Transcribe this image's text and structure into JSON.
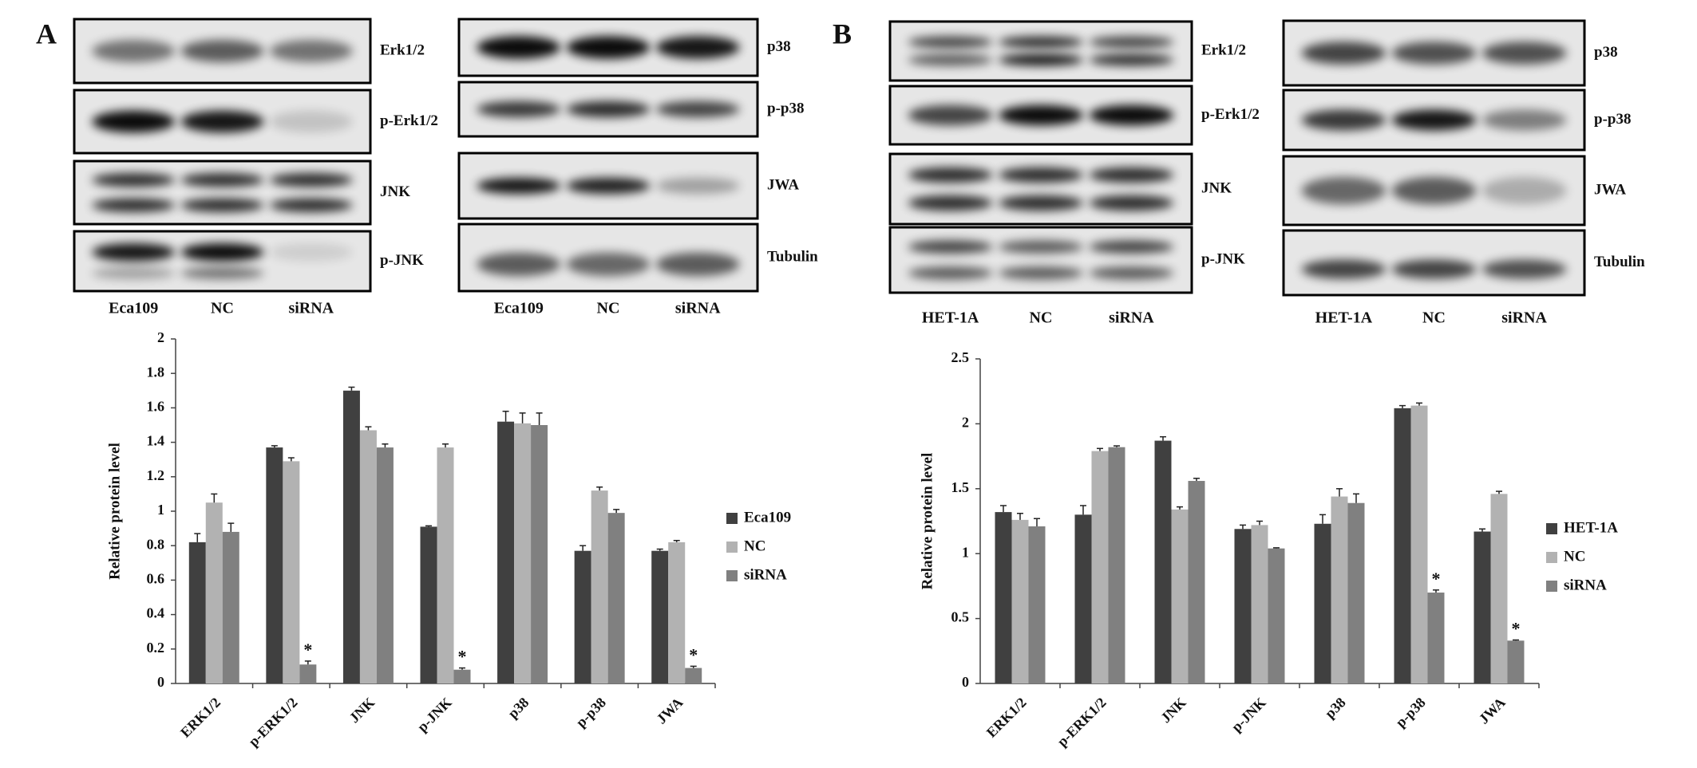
{
  "panel_labels": [
    "A",
    "B"
  ],
  "blots": [
    {
      "rows": [
        "Erk1/2",
        "p-Erk1/2",
        "JNK",
        "p-JNK"
      ],
      "lanes": [
        "Eca109",
        "NC",
        "siRNA"
      ]
    },
    {
      "rows": [
        "p38",
        "p-p38",
        "JWA",
        "Tubulin"
      ],
      "lanes": [
        "Eca109",
        "NC",
        "siRNA"
      ]
    },
    {
      "rows": [
        "Erk1/2",
        "p-Erk1/2",
        "JNK",
        "p-JNK"
      ],
      "lanes": [
        "HET-1A",
        "NC",
        "siRNA"
      ]
    },
    {
      "rows": [
        "p38",
        "p-p38",
        "JWA",
        "Tubulin"
      ],
      "lanes": [
        "HET-1A",
        "NC",
        "siRNA"
      ]
    }
  ],
  "chart_data": [
    {
      "type": "bar",
      "y_label": "Relative protein level",
      "categories": [
        "ERK1/2",
        "p-ERK1/2",
        "JNK",
        "p-JNK",
        "p38",
        "p-p38",
        "JWA"
      ],
      "series": [
        {
          "name": "Eca109",
          "color": "#404040",
          "values": [
            0.82,
            1.37,
            1.7,
            0.91,
            1.52,
            0.77,
            0.77
          ],
          "errors": [
            0.05,
            0.01,
            0.02,
            0.005,
            0.06,
            0.03,
            0.01
          ]
        },
        {
          "name": "NC",
          "color": "#b2b2b2",
          "values": [
            1.05,
            1.29,
            1.47,
            1.37,
            1.51,
            1.12,
            0.82
          ],
          "errors": [
            0.05,
            0.02,
            0.02,
            0.02,
            0.06,
            0.02,
            0.01
          ]
        },
        {
          "name": "siRNA",
          "color": "#808080",
          "values": [
            0.88,
            0.11,
            1.37,
            0.08,
            1.5,
            0.99,
            0.09
          ],
          "errors": [
            0.05,
            0.02,
            0.02,
            0.01,
            0.07,
            0.02,
            0.01
          ],
          "annotations": [
            null,
            "*",
            null,
            "*",
            null,
            null,
            "*"
          ]
        }
      ],
      "ylim": [
        0,
        2
      ],
      "yticks": [
        0,
        0.2,
        0.4,
        0.6,
        0.8,
        1,
        1.2,
        1.4,
        1.6,
        1.8,
        2
      ],
      "legend": "right"
    },
    {
      "type": "bar",
      "y_label": "Relative protein level",
      "categories": [
        "ERK1/2",
        "p-ERK1/2",
        "JNK",
        "p-JNK",
        "p38",
        "p-p38",
        "JWA"
      ],
      "series": [
        {
          "name": "HET-1A",
          "color": "#404040",
          "values": [
            1.32,
            1.3,
            1.87,
            1.19,
            1.23,
            2.12,
            1.17
          ],
          "errors": [
            0.05,
            0.07,
            0.03,
            0.03,
            0.07,
            0.02,
            0.02
          ]
        },
        {
          "name": "NC",
          "color": "#b2b2b2",
          "values": [
            1.26,
            1.79,
            1.34,
            1.22,
            1.44,
            2.14,
            1.46
          ],
          "errors": [
            0.05,
            0.02,
            0.02,
            0.03,
            0.06,
            0.02,
            0.02
          ]
        },
        {
          "name": "siRNA",
          "color": "#808080",
          "values": [
            1.21,
            1.82,
            1.56,
            1.04,
            1.39,
            0.7,
            0.33
          ],
          "errors": [
            0.06,
            0.01,
            0.02,
            0.005,
            0.07,
            0.02,
            0.005
          ],
          "annotations": [
            null,
            null,
            null,
            null,
            null,
            "*",
            "*"
          ]
        }
      ],
      "ylim": [
        0,
        2.5
      ],
      "yticks": [
        0,
        0.5,
        1,
        1.5,
        2,
        2.5
      ],
      "legend": "right"
    }
  ]
}
